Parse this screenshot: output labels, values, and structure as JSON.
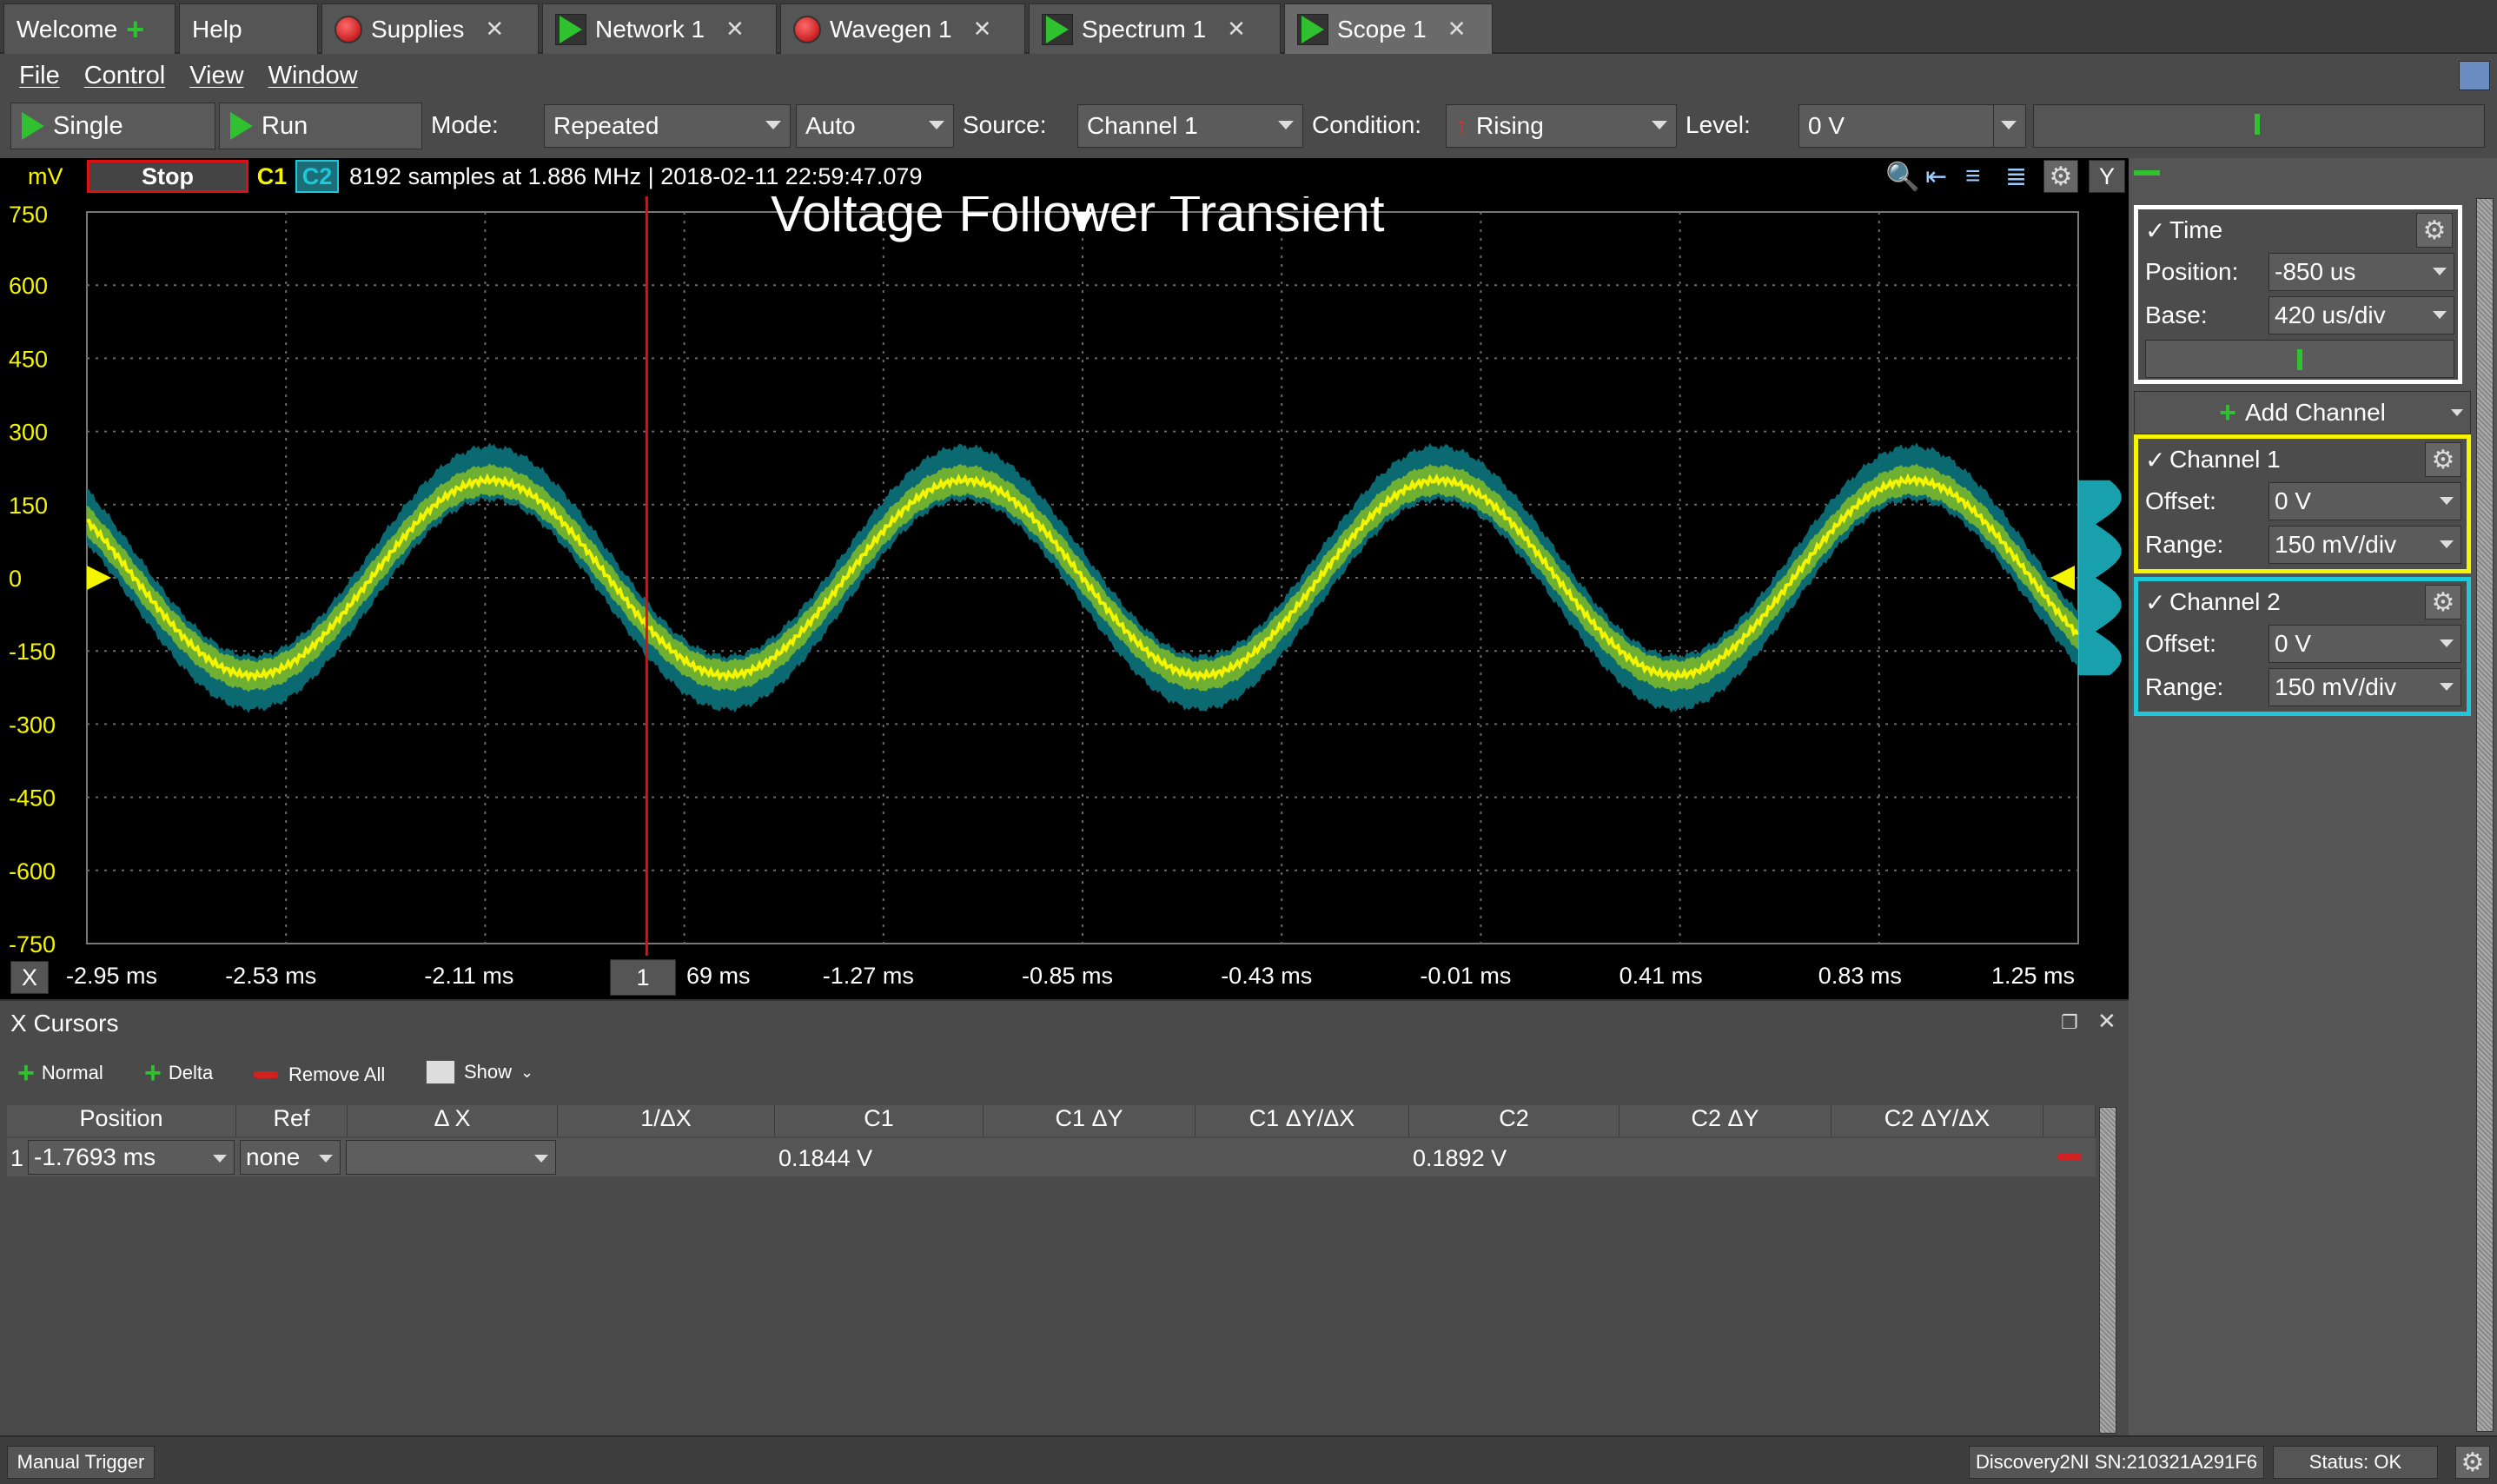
{
  "tabs": [
    {
      "label": "Welcome",
      "icon": "plus-icon"
    },
    {
      "label": "Help",
      "icon": ""
    },
    {
      "label": "Supplies",
      "icon": "record-icon"
    },
    {
      "label": "Network 1",
      "icon": "play-icon"
    },
    {
      "label": "Wavegen 1",
      "icon": "record-icon"
    },
    {
      "label": "Spectrum 1",
      "icon": "play-icon"
    },
    {
      "label": "Scope 1",
      "icon": "play-icon"
    }
  ],
  "menu": [
    "File",
    "Control",
    "View",
    "Window"
  ],
  "toolbar": {
    "single": "Single",
    "run": "Run",
    "mode_label": "Mode:",
    "mode_value": "Repeated",
    "auto_value": "Auto",
    "source_label": "Source:",
    "source_value": "Channel 1",
    "condition_label": "Condition:",
    "condition_value": "Rising",
    "level_label": "Level:",
    "level_value": "0 V"
  },
  "plot": {
    "unit": "mV",
    "state": "Stop",
    "ch1": "C1",
    "ch2": "C2",
    "info": "8192 samples at 1.886 MHz | 2018-02-11 22:59:47.079",
    "title": "Voltage Follower Transient",
    "y_label_btn": "Y",
    "x_label_btn": "X",
    "cursor_label": "1",
    "y_ticks": [
      "750",
      "600",
      "450",
      "300",
      "150",
      "0",
      "-150",
      "-300",
      "-450",
      "-600",
      "-750"
    ],
    "x_ticks": [
      "-2.95 ms",
      "-2.53 ms",
      "-2.11 ms",
      "-1.69 ms",
      "-1.27 ms",
      "-0.85 ms",
      "-0.43 ms",
      "-0.01 ms",
      "0.41 ms",
      "0.83 ms",
      "1.25 ms"
    ],
    "x_ticks_shown": [
      "-2.95 ms",
      "-2.53 ms",
      "-2.11 ms",
      "69 ms",
      "-1.27 ms",
      "-0.85 ms",
      "-0.43 ms",
      "-0.01 ms",
      "0.41 ms",
      "0.83 ms",
      "1.25 ms"
    ],
    "colors": {
      "ch1": "#f5f500",
      "ch2": "#1fc8d8",
      "cursor": "#e01010",
      "grid": "#6a6a6a"
    }
  },
  "chart_data": {
    "type": "line",
    "title": "Voltage Follower Transient",
    "xlabel": "",
    "ylabel": "mV",
    "xlim": [
      -2.95,
      1.25
    ],
    "ylim": [
      -750,
      750
    ],
    "grid": true,
    "series": [
      {
        "name": "C1",
        "amplitude_mV": 200,
        "frequency_kHz": 1.0,
        "peak_time_ms": -2.1,
        "color": "#f5f500"
      },
      {
        "name": "C2",
        "amplitude_mV": 215,
        "frequency_kHz": 1.0,
        "peak_time_ms": -2.1,
        "color": "#1fc8d8"
      }
    ],
    "cursor_x_ms": -1.7693
  },
  "right_panel": {
    "time": {
      "title": "Time",
      "position_label": "Position:",
      "position_value": "-850 us",
      "base_label": "Base:",
      "base_value": "420 us/div"
    },
    "add_channel": "Add Channel",
    "channel1": {
      "title": "Channel 1",
      "offset_label": "Offset:",
      "offset_value": "0 V",
      "range_label": "Range:",
      "range_value": "150 mV/div"
    },
    "channel2": {
      "title": "Channel 2",
      "offset_label": "Offset:",
      "offset_value": "0 V",
      "range_label": "Range:",
      "range_value": "150 mV/div"
    }
  },
  "cursors": {
    "title": "X Cursors",
    "normal": "Normal",
    "delta": "Delta",
    "remove_all": "Remove All",
    "show": "Show",
    "headers": [
      "Position",
      "Ref",
      "Δ X",
      "1/ΔX",
      "C1",
      "C1 ΔY",
      "C1 ΔY/ΔX",
      "C2",
      "C2 ΔY",
      "C2 ΔY/ΔX"
    ],
    "row": {
      "index": "1",
      "position": "-1.7693 ms",
      "ref": "none",
      "c1": "0.1844 V",
      "c2": "0.1892 V"
    }
  },
  "status": {
    "manual_trigger": "Manual Trigger",
    "device": "Discovery2NI SN:210321A291F6",
    "status": "Status: OK"
  }
}
